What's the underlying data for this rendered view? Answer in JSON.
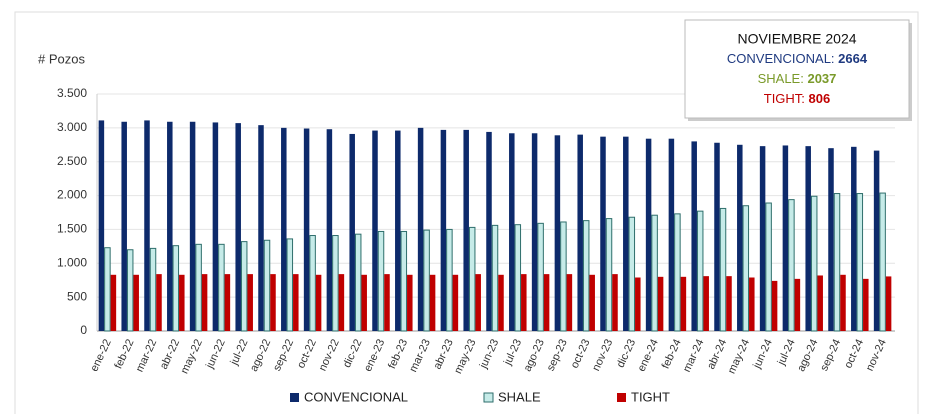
{
  "chart_data": {
    "type": "bar",
    "ylabel": "# Pozos",
    "categories": [
      "ene-22",
      "feb-22",
      "mar-22",
      "abr-22",
      "may-22",
      "jun-22",
      "jul-22",
      "ago-22",
      "sep-22",
      "oct-22",
      "nov-22",
      "dic-22",
      "ene-23",
      "feb-23",
      "mar-23",
      "abr-23",
      "may-23",
      "jun-23",
      "jul-23",
      "ago-23",
      "sep-23",
      "oct-23",
      "nov-23",
      "dic-23",
      "ene-24",
      "feb-24",
      "mar-24",
      "abr-24",
      "may-24",
      "jun-24",
      "jul-24",
      "ago-24",
      "sep-24",
      "oct-24",
      "nov-24"
    ],
    "series": [
      {
        "name": "CONVENCIONAL",
        "color": "#0d2a6b",
        "values": [
          3110,
          3090,
          3110,
          3090,
          3090,
          3080,
          3070,
          3040,
          3000,
          2990,
          2980,
          2910,
          2960,
          2960,
          3000,
          2970,
          2970,
          2940,
          2920,
          2920,
          2890,
          2900,
          2870,
          2870,
          2840,
          2840,
          2800,
          2780,
          2750,
          2730,
          2740,
          2730,
          2700,
          2720,
          2664
        ]
      },
      {
        "name": "SHALE",
        "color": "#c6ebe8",
        "edgecolor": "#2e6e6b",
        "values": [
          1230,
          1200,
          1220,
          1260,
          1280,
          1280,
          1320,
          1340,
          1360,
          1410,
          1410,
          1430,
          1470,
          1470,
          1490,
          1500,
          1530,
          1560,
          1570,
          1590,
          1610,
          1630,
          1660,
          1680,
          1710,
          1730,
          1770,
          1810,
          1850,
          1890,
          1940,
          1990,
          2030,
          2030,
          2037
        ]
      },
      {
        "name": "TIGHT",
        "color": "#c00000",
        "values": [
          830,
          830,
          840,
          830,
          840,
          840,
          840,
          840,
          840,
          830,
          840,
          830,
          840,
          830,
          830,
          830,
          840,
          830,
          840,
          840,
          840,
          830,
          840,
          790,
          800,
          800,
          810,
          810,
          790,
          740,
          770,
          820,
          830,
          770,
          806
        ]
      }
    ],
    "ylim": [
      0,
      3500
    ],
    "yticks": [
      0,
      500,
      {
        "value": 1000,
        "label": "1.000"
      },
      {
        "value": 1500,
        "label": "1.500"
      },
      {
        "value": 2000,
        "label": "2.000"
      },
      {
        "value": 2500,
        "label": "2.500"
      },
      {
        "value": 3000,
        "label": "3.000"
      },
      {
        "value": 3500,
        "label": "3.500"
      }
    ],
    "grid": true,
    "legend": "bottom",
    "annotation": {
      "title": "NOVIEMBRE 2024",
      "items": [
        {
          "label": "CONVENCIONAL:",
          "value": 2664,
          "color": "#1f3a80"
        },
        {
          "label": "SHALE:",
          "value": 2037,
          "color": "#7a9a2a"
        },
        {
          "label": "TIGHT:",
          "value": 806,
          "color": "#c00000"
        }
      ]
    }
  }
}
